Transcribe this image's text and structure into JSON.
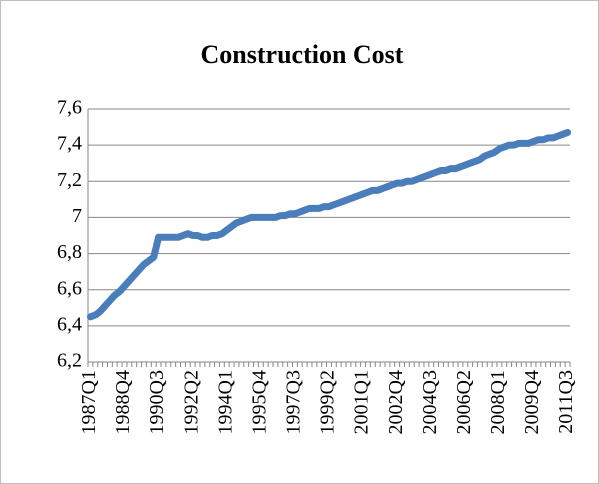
{
  "chart_data": {
    "type": "line",
    "title": "Construction Cost",
    "categories": [
      "1987Q1",
      null,
      null,
      null,
      null,
      null,
      null,
      "1988Q4",
      null,
      null,
      null,
      null,
      null,
      null,
      "1990Q3",
      null,
      null,
      null,
      null,
      null,
      null,
      "1992Q2",
      null,
      null,
      null,
      null,
      null,
      null,
      "1994Q1",
      null,
      null,
      null,
      null,
      null,
      null,
      "1995Q4",
      null,
      null,
      null,
      null,
      null,
      null,
      "1997Q3",
      null,
      null,
      null,
      null,
      null,
      null,
      "1999Q2",
      null,
      null,
      null,
      null,
      null,
      null,
      "2001Q1",
      null,
      null,
      null,
      null,
      null,
      null,
      "2002Q4",
      null,
      null,
      null,
      null,
      null,
      null,
      "2004Q3",
      null,
      null,
      null,
      null,
      null,
      null,
      "2006Q2",
      null,
      null,
      null,
      null,
      null,
      null,
      "2008Q1",
      null,
      null,
      null,
      null,
      null,
      null,
      "2009Q4",
      null,
      null,
      null,
      null,
      null,
      null,
      "2011Q3"
    ],
    "values": [
      6.45,
      6.46,
      6.48,
      6.51,
      6.54,
      6.57,
      6.59,
      6.62,
      6.65,
      6.68,
      6.71,
      6.74,
      6.76,
      6.78,
      6.89,
      6.89,
      6.89,
      6.89,
      6.89,
      6.9,
      6.91,
      6.9,
      6.9,
      6.89,
      6.89,
      6.9,
      6.9,
      6.91,
      6.93,
      6.95,
      6.97,
      6.98,
      6.99,
      7.0,
      7.0,
      7.0,
      7.0,
      7.0,
      7.0,
      7.01,
      7.01,
      7.02,
      7.02,
      7.03,
      7.04,
      7.05,
      7.05,
      7.05,
      7.06,
      7.06,
      7.07,
      7.08,
      7.09,
      7.1,
      7.11,
      7.12,
      7.13,
      7.14,
      7.15,
      7.15,
      7.16,
      7.17,
      7.18,
      7.19,
      7.19,
      7.2,
      7.2,
      7.21,
      7.22,
      7.23,
      7.24,
      7.25,
      7.26,
      7.26,
      7.27,
      7.27,
      7.28,
      7.29,
      7.3,
      7.31,
      7.32,
      7.34,
      7.35,
      7.36,
      7.38,
      7.39,
      7.4,
      7.4,
      7.41,
      7.41,
      7.41,
      7.42,
      7.43,
      7.43,
      7.44,
      7.44,
      7.45,
      7.46,
      7.47
    ],
    "color": "#4a7ebb",
    "ylim": [
      6.2,
      7.6
    ],
    "yticks": [
      {
        "value": 6.2,
        "label": "6,2"
      },
      {
        "value": 6.4,
        "label": "6,4"
      },
      {
        "value": 6.6,
        "label": "6,6"
      },
      {
        "value": 6.8,
        "label": "6,8"
      },
      7,
      {
        "value": 7.2,
        "label": "7,2"
      },
      {
        "value": 7.4,
        "label": "7,4"
      },
      {
        "value": 7.6,
        "label": "7,6"
      }
    ],
    "grid": true
  }
}
